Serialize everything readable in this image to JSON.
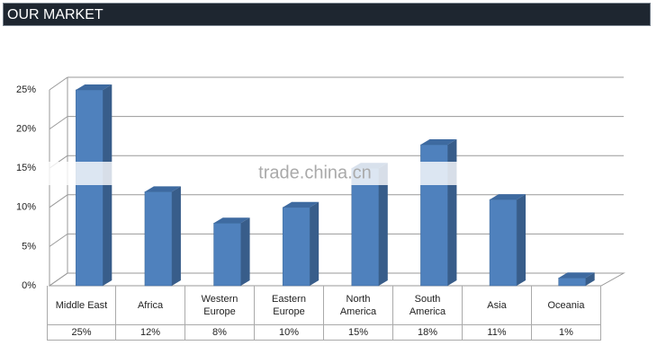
{
  "header": {
    "title": "OUR MARKET"
  },
  "watermark": "trade.china.cn",
  "chart_data": {
    "type": "bar3d",
    "categories": [
      "Middle East",
      "Africa",
      "Western Europe",
      "Eastern Europe",
      "North America",
      "South America",
      "Asia",
      "Oceania"
    ],
    "values": [
      25,
      12,
      8,
      10,
      15,
      18,
      11,
      1
    ],
    "value_labels": [
      "25%",
      "12%",
      "8%",
      "10%",
      "15%",
      "18%",
      "11%",
      "1%"
    ],
    "color": "#4f81bd",
    "ylim": [
      0,
      25
    ],
    "yticks": [
      {
        "value": 0,
        "label": "0%"
      },
      {
        "value": 5,
        "label": "5%"
      },
      {
        "value": 10,
        "label": "10%"
      },
      {
        "value": 15,
        "label": "15%"
      },
      {
        "value": 20,
        "label": "20%"
      },
      {
        "value": 25,
        "label": "25%"
      }
    ],
    "grid": true
  }
}
